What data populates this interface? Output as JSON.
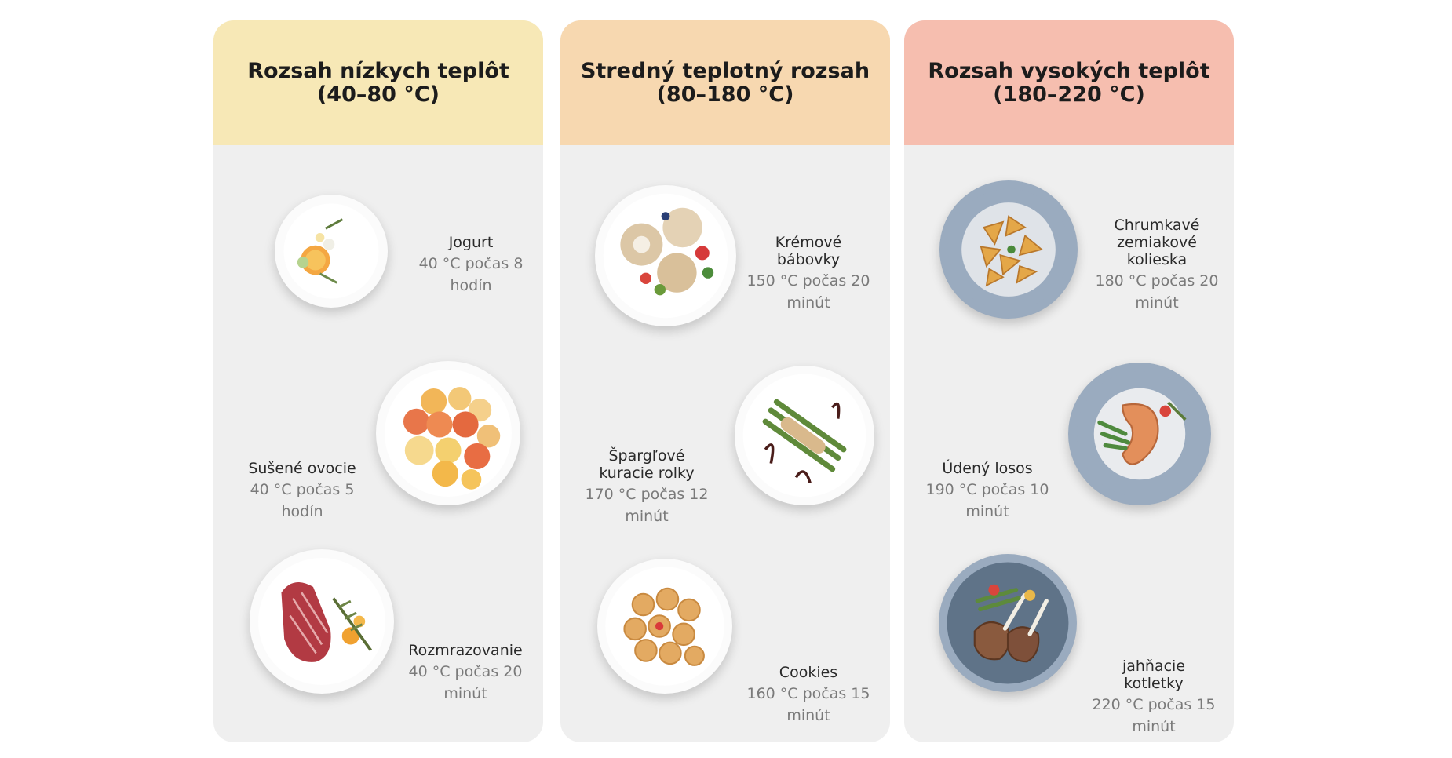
{
  "columns": [
    {
      "title": "Rozsah nízkych teplôt (40–80 °C)",
      "header_color": "#f7e8b6",
      "items": [
        {
          "name": "Jogurt",
          "desc": "40 °C počas 8 hodín",
          "icon": "yogurt-bowl-icon"
        },
        {
          "name": "Sušené ovocie",
          "desc": "40 °C počas 5 hodín",
          "icon": "dried-fruit-plate-icon"
        },
        {
          "name": "Rozmrazovanie",
          "desc": "40 °C počas 20 minút",
          "icon": "steak-plate-icon"
        }
      ]
    },
    {
      "title": "Stredný teplotný rozsah (80–180 °C)",
      "header_color": "#f7d8b0",
      "items": [
        {
          "name": "Krémové bábovky",
          "desc": "150 °C počas 20 minút",
          "icon": "cream-puffs-plate-icon"
        },
        {
          "name": "Špargľové kuracie rolky",
          "desc": "170 °C počas 12 minút",
          "icon": "asparagus-rolls-plate-icon"
        },
        {
          "name": "Cookies",
          "desc": "160 °C počas 15 minút",
          "icon": "cookies-plate-icon"
        }
      ]
    },
    {
      "title": "Rozsah vysokých teplôt (180–220 °C)",
      "header_color": "#f6beaf",
      "items": [
        {
          "name": "Chrumkavé zemiakové kolieska",
          "desc": "180 °C počas 20 minút",
          "icon": "potato-wedges-plate-icon"
        },
        {
          "name": "Údený losos",
          "desc": "190 °C počas 10 minút",
          "icon": "salmon-plate-icon"
        },
        {
          "name": "jahňacie kotletky",
          "desc": "220 °C počas 15 minút",
          "icon": "lamb-chops-plate-icon"
        }
      ]
    }
  ]
}
